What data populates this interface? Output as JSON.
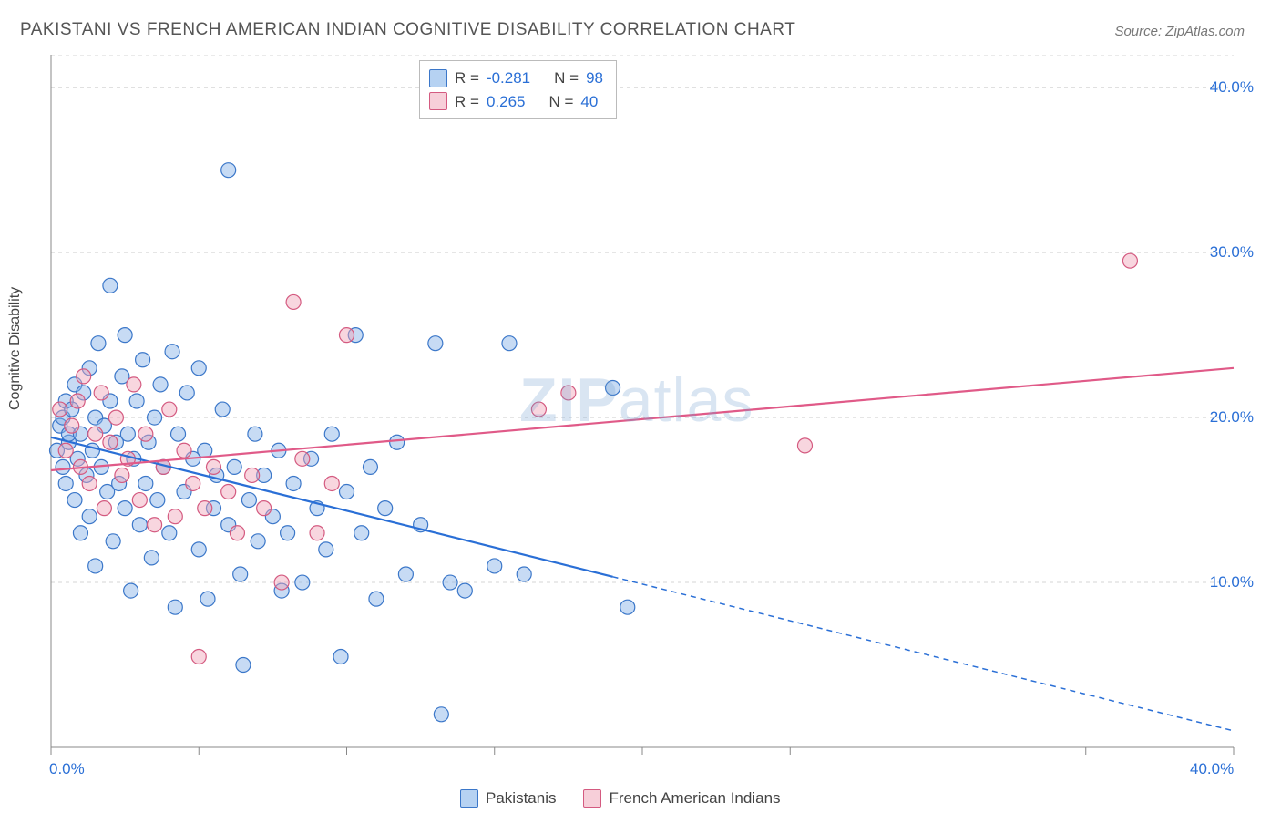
{
  "title": "PAKISTANI VS FRENCH AMERICAN INDIAN COGNITIVE DISABILITY CORRELATION CHART",
  "source": "Source: ZipAtlas.com",
  "ylabel": "Cognitive Disability",
  "watermark_bold": "ZIP",
  "watermark_thin": "atlas",
  "chart": {
    "type": "scatter",
    "xlim": [
      0,
      40
    ],
    "ylim": [
      0,
      42
    ],
    "x_ticks": [
      0,
      5,
      10,
      15,
      20,
      25,
      30,
      35,
      40
    ],
    "x_tick_labels": [
      "0.0%",
      "",
      "",
      "",
      "",
      "",
      "",
      "",
      "40.0%"
    ],
    "y_gridlines": [
      10,
      20,
      30,
      40,
      42
    ],
    "y_tick_labels": {
      "10": "10.0%",
      "20": "20.0%",
      "30": "30.0%",
      "40": "40.0%"
    },
    "background_color": "#ffffff",
    "grid_color": "#d5d5d5",
    "axis_color": "#888888",
    "marker_radius": 8,
    "marker_stroke_width": 1.2,
    "series": [
      {
        "name": "Pakistanis",
        "fill": "rgba(130,175,230,0.45)",
        "stroke": "#3b77c9",
        "R": "-0.281",
        "N": "98",
        "trend": {
          "x1": 0,
          "y1": 18.8,
          "x2": 40,
          "y2": 1.0,
          "solid_until_x": 19,
          "color": "#2a6fd6",
          "width": 2.2
        },
        "points": [
          [
            0.2,
            18
          ],
          [
            0.3,
            19.5
          ],
          [
            0.4,
            17
          ],
          [
            0.4,
            20
          ],
          [
            0.5,
            16
          ],
          [
            0.5,
            21
          ],
          [
            0.6,
            18.5
          ],
          [
            0.6,
            19
          ],
          [
            0.7,
            20.5
          ],
          [
            0.8,
            15
          ],
          [
            0.8,
            22
          ],
          [
            0.9,
            17.5
          ],
          [
            1.0,
            19
          ],
          [
            1.0,
            13
          ],
          [
            1.1,
            21.5
          ],
          [
            1.2,
            16.5
          ],
          [
            1.3,
            14
          ],
          [
            1.3,
            23
          ],
          [
            1.4,
            18
          ],
          [
            1.5,
            20
          ],
          [
            1.5,
            11
          ],
          [
            1.6,
            24.5
          ],
          [
            1.7,
            17
          ],
          [
            1.8,
            19.5
          ],
          [
            1.9,
            15.5
          ],
          [
            2.0,
            28
          ],
          [
            2.0,
            21
          ],
          [
            2.1,
            12.5
          ],
          [
            2.2,
            18.5
          ],
          [
            2.3,
            16
          ],
          [
            2.4,
            22.5
          ],
          [
            2.5,
            14.5
          ],
          [
            2.5,
            25
          ],
          [
            2.6,
            19
          ],
          [
            2.7,
            9.5
          ],
          [
            2.8,
            17.5
          ],
          [
            2.9,
            21
          ],
          [
            3.0,
            13.5
          ],
          [
            3.1,
            23.5
          ],
          [
            3.2,
            16
          ],
          [
            3.3,
            18.5
          ],
          [
            3.4,
            11.5
          ],
          [
            3.5,
            20
          ],
          [
            3.6,
            15
          ],
          [
            3.7,
            22
          ],
          [
            3.8,
            17
          ],
          [
            4.0,
            13
          ],
          [
            4.1,
            24
          ],
          [
            4.2,
            8.5
          ],
          [
            4.3,
            19
          ],
          [
            4.5,
            15.5
          ],
          [
            4.6,
            21.5
          ],
          [
            4.8,
            17.5
          ],
          [
            5.0,
            12
          ],
          [
            5.0,
            23
          ],
          [
            5.2,
            18
          ],
          [
            5.3,
            9
          ],
          [
            5.5,
            14.5
          ],
          [
            5.6,
            16.5
          ],
          [
            5.8,
            20.5
          ],
          [
            6.0,
            35
          ],
          [
            6.0,
            13.5
          ],
          [
            6.2,
            17
          ],
          [
            6.4,
            10.5
          ],
          [
            6.5,
            5
          ],
          [
            6.7,
            15
          ],
          [
            6.9,
            19
          ],
          [
            7.0,
            12.5
          ],
          [
            7.2,
            16.5
          ],
          [
            7.5,
            14
          ],
          [
            7.7,
            18
          ],
          [
            7.8,
            9.5
          ],
          [
            8.0,
            13
          ],
          [
            8.2,
            16
          ],
          [
            8.5,
            10
          ],
          [
            8.8,
            17.5
          ],
          [
            9.0,
            14.5
          ],
          [
            9.3,
            12
          ],
          [
            9.5,
            19
          ],
          [
            9.8,
            5.5
          ],
          [
            10.0,
            15.5
          ],
          [
            10.3,
            25
          ],
          [
            10.5,
            13
          ],
          [
            10.8,
            17
          ],
          [
            11.0,
            9
          ],
          [
            11.3,
            14.5
          ],
          [
            11.7,
            18.5
          ],
          [
            12.0,
            10.5
          ],
          [
            12.5,
            13.5
          ],
          [
            13.0,
            24.5
          ],
          [
            13.2,
            2
          ],
          [
            13.5,
            10
          ],
          [
            14.0,
            9.5
          ],
          [
            15.0,
            11
          ],
          [
            15.5,
            24.5
          ],
          [
            16.0,
            10.5
          ],
          [
            19.0,
            21.8
          ],
          [
            19.5,
            8.5
          ]
        ]
      },
      {
        "name": "French American Indians",
        "fill": "rgba(240,165,185,0.45)",
        "stroke": "#d45a80",
        "R": "0.265",
        "N": "40",
        "trend": {
          "x1": 0,
          "y1": 16.8,
          "x2": 40,
          "y2": 23.0,
          "solid_until_x": 40,
          "color": "#e05a88",
          "width": 2.2
        },
        "points": [
          [
            0.3,
            20.5
          ],
          [
            0.5,
            18
          ],
          [
            0.7,
            19.5
          ],
          [
            0.9,
            21
          ],
          [
            1.0,
            17
          ],
          [
            1.1,
            22.5
          ],
          [
            1.3,
            16
          ],
          [
            1.5,
            19
          ],
          [
            1.7,
            21.5
          ],
          [
            1.8,
            14.5
          ],
          [
            2.0,
            18.5
          ],
          [
            2.2,
            20
          ],
          [
            2.4,
            16.5
          ],
          [
            2.6,
            17.5
          ],
          [
            2.8,
            22
          ],
          [
            3.0,
            15
          ],
          [
            3.2,
            19
          ],
          [
            3.5,
            13.5
          ],
          [
            3.8,
            17
          ],
          [
            4.0,
            20.5
          ],
          [
            4.2,
            14
          ],
          [
            4.5,
            18
          ],
          [
            4.8,
            16
          ],
          [
            5.0,
            5.5
          ],
          [
            5.2,
            14.5
          ],
          [
            5.5,
            17
          ],
          [
            6.0,
            15.5
          ],
          [
            6.3,
            13
          ],
          [
            6.8,
            16.5
          ],
          [
            7.2,
            14.5
          ],
          [
            7.8,
            10
          ],
          [
            8.2,
            27
          ],
          [
            8.5,
            17.5
          ],
          [
            9.0,
            13
          ],
          [
            9.5,
            16
          ],
          [
            10.0,
            25
          ],
          [
            16.5,
            20.5
          ],
          [
            17.5,
            21.5
          ],
          [
            25.5,
            18.3
          ],
          [
            36.5,
            29.5
          ]
        ]
      }
    ]
  },
  "stats_box": {
    "rows": [
      {
        "swatch": "blue",
        "R": "-0.281",
        "N": "98"
      },
      {
        "swatch": "pink",
        "R": "0.265",
        "N": "40"
      }
    ]
  },
  "legend": [
    {
      "swatch": "blue",
      "label": "Pakistanis"
    },
    {
      "swatch": "pink",
      "label": "French American Indians"
    }
  ]
}
